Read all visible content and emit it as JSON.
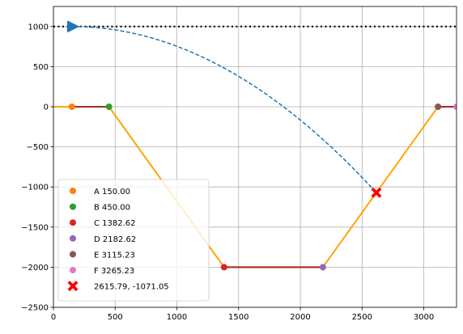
{
  "chart_data": {
    "type": "line",
    "xlim": [
      0,
      3265.23
    ],
    "ylim": [
      -2500,
      1250
    ],
    "x_ticks": [
      0,
      500,
      1000,
      1500,
      2000,
      2500,
      3000
    ],
    "y_ticks": [
      1000,
      500,
      0,
      -500,
      -1000,
      -1500,
      -2000,
      -2500
    ],
    "x_tick_labels": [
      "0",
      "500",
      "1000",
      "1500",
      "2000",
      "2500",
      "3000"
    ],
    "y_tick_labels": [
      "1000",
      "500",
      "0",
      "−500",
      "−1000",
      "−1500",
      "−2000",
      "−2500"
    ],
    "grid": true,
    "legend_position": "lower-left",
    "reference_line": {
      "y": 1000,
      "style": "dotted",
      "color": "#000000"
    },
    "terrain": {
      "x": [
        0,
        150,
        450,
        1382.62,
        2182.62,
        3115.23,
        3265.23
      ],
      "y": [
        0,
        0,
        0,
        -2000,
        -2000,
        0,
        0
      ],
      "color": "#ffa500"
    },
    "flat_segments": [
      {
        "x": [
          150,
          450
        ],
        "y": [
          0,
          0
        ],
        "color": "#a52a2a"
      },
      {
        "x": [
          1382.62,
          2182.62
        ],
        "y": [
          -2000,
          -2000
        ],
        "color": "#a52a2a"
      },
      {
        "x": [
          3115.23,
          3265.23
        ],
        "y": [
          0,
          0
        ],
        "color": "#a52a2a"
      }
    ],
    "trajectory": {
      "color": "#1f77b4",
      "style": "dashed",
      "start": [
        150,
        1000
      ],
      "end": [
        2615.79,
        -1071.05
      ]
    },
    "start_marker": {
      "x": 150,
      "y": 1000,
      "color": "#1f77b4"
    },
    "points": [
      {
        "label": "A 150.00",
        "x": 150,
        "y": 0,
        "color": "#ff7f0e"
      },
      {
        "label": "B 450.00",
        "x": 450,
        "y": 0,
        "color": "#2ca02c"
      },
      {
        "label": "C 1382.62",
        "x": 1382.62,
        "y": -2000,
        "color": "#d62728"
      },
      {
        "label": "D 2182.62",
        "x": 2182.62,
        "y": -2000,
        "color": "#9467bd"
      },
      {
        "label": "E 3115.23",
        "x": 3115.23,
        "y": 0,
        "color": "#8c564b"
      },
      {
        "label": "F 3265.23",
        "x": 3265.23,
        "y": 0,
        "color": "#e377c2"
      }
    ],
    "impact": {
      "label": "2615.79, -1071.05",
      "x": 2615.79,
      "y": -1071.05,
      "color": "#ff0000"
    }
  }
}
